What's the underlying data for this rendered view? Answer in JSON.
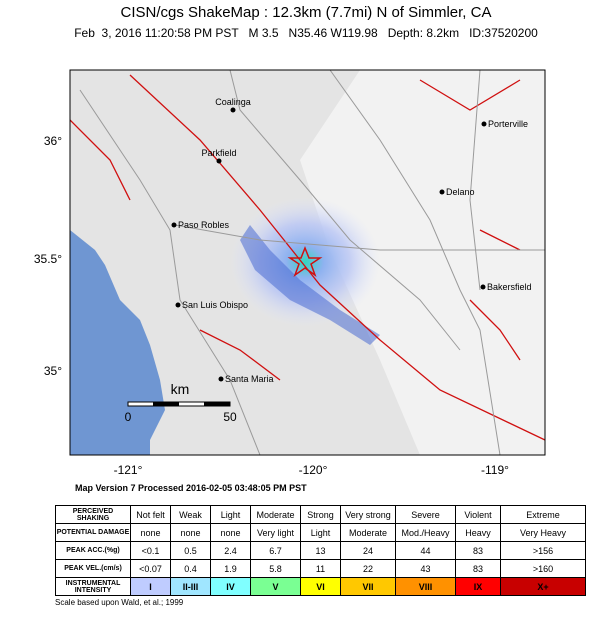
{
  "header": {
    "title": "CISN/cgs ShakeMap : 12.3km (7.7mi) N of Simmler, CA",
    "subtitle": "Feb  3, 2016 11:20:58 PM PST   M 3.5   N35.46 W119.98   Depth: 8.2km   ID:37520200"
  },
  "map": {
    "lat_labels": [
      "36°",
      "35.5°",
      "35°"
    ],
    "lon_labels": [
      "-121°",
      "-120°",
      "-119°"
    ],
    "cities": [
      "Coalinga",
      "Porterville",
      "Parkfield",
      "Delano",
      "Paso Robles",
      "Bakersfield",
      "San Luis Obispo",
      "Santa Maria"
    ],
    "scale": {
      "unit": "km",
      "labels": [
        "0",
        "50"
      ]
    }
  },
  "version": "Map Version 7 Processed 2016-02-05 03:48:05 PM PST",
  "legend": {
    "rows": [
      {
        "label": "PERCEIVED SHAKING",
        "cells": [
          "Not felt",
          "Weak",
          "Light",
          "Moderate",
          "Strong",
          "Very strong",
          "Severe",
          "Violent",
          "Extreme"
        ]
      },
      {
        "label": "POTENTIAL DAMAGE",
        "cells": [
          "none",
          "none",
          "none",
          "Very light",
          "Light",
          "Moderate",
          "Mod./Heavy",
          "Heavy",
          "Very Heavy"
        ]
      },
      {
        "label": "PEAK ACC.(%g)",
        "cells": [
          "<0.1",
          "0.5",
          "2.4",
          "6.7",
          "13",
          "24",
          "44",
          "83",
          ">156"
        ]
      },
      {
        "label": "PEAK VEL.(cm/s)",
        "cells": [
          "<0.07",
          "0.4",
          "1.9",
          "5.8",
          "11",
          "22",
          "43",
          "83",
          ">160"
        ]
      },
      {
        "label": "INSTRUMENTAL INTENSITY",
        "cells": [
          "I",
          "II-III",
          "IV",
          "V",
          "VI",
          "VII",
          "VIII",
          "IX",
          "X+"
        ]
      }
    ]
  },
  "footnote": "Scale based upon Wald, et al.; 1999"
}
